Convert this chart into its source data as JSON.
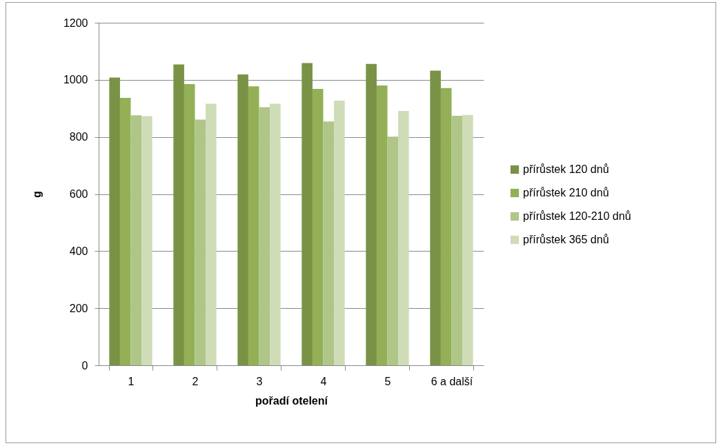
{
  "chart_data": {
    "type": "bar",
    "xlabel": "pořadí otelení",
    "ylabel": "g",
    "categories": [
      "1",
      "2",
      "3",
      "4",
      "5",
      "6 a další"
    ],
    "series": [
      {
        "name": "přírůstek 120 dnů",
        "color": "#7a9245",
        "values": [
          1008,
          1054,
          1019,
          1059,
          1056,
          1032
        ]
      },
      {
        "name": "přírůstek 210 dnů",
        "color": "#93b056",
        "values": [
          937,
          985,
          977,
          968,
          980,
          971
        ]
      },
      {
        "name": "přírůstek 120-210 dnů",
        "color": "#afc688",
        "values": [
          876,
          861,
          904,
          854,
          801,
          874
        ]
      },
      {
        "name": "přírůstek 365 dnů",
        "color": "#cfdcb8",
        "values": [
          873,
          916,
          916,
          927,
          891,
          877
        ]
      }
    ],
    "ylim": [
      0,
      1200
    ],
    "yticks": [
      0,
      200,
      400,
      600,
      800,
      1000,
      1200
    ],
    "grid": "y",
    "legend": "right"
  }
}
